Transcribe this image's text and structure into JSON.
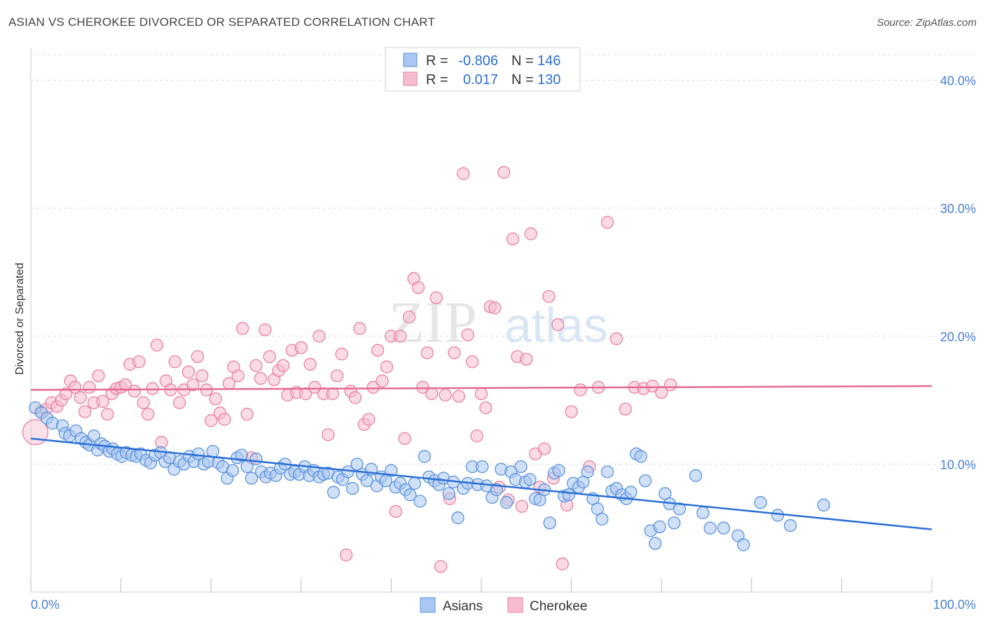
{
  "title": "ASIAN VS CHEROKEE DIVORCED OR SEPARATED CORRELATION CHART",
  "source": "Source: ZipAtlas.com",
  "watermark": {
    "zip": "ZIP",
    "atlas": "atlas"
  },
  "colors": {
    "asians_fill": "#a9c7f0",
    "asians_stroke": "#5b93da",
    "asians_line": "#2a6fd6",
    "cherokee_fill": "#f6bdd0",
    "cherokee_stroke": "#e8809f",
    "cherokee_line": "#e46a92",
    "grid": "#dddddd",
    "tick_text": "#4a7fd0"
  },
  "legend": {
    "rows": [
      {
        "r_label": "R =",
        "r_value": "-0.806",
        "n_label": "N =",
        "n_value": "146"
      },
      {
        "r_label": "R =",
        "r_value": "0.017",
        "n_label": "N =",
        "n_value": "130"
      }
    ]
  },
  "bottom_legend": [
    "Asians",
    "Cherokee"
  ],
  "chart_data": {
    "type": "scatter",
    "title": "ASIAN VS CHEROKEE DIVORCED OR SEPARATED CORRELATION CHART",
    "xlabel": "",
    "ylabel": "Divorced or Separated",
    "xlim": [
      0,
      100
    ],
    "ylim": [
      0,
      42
    ],
    "x_tick_labels": [
      "0.0%",
      "100.0%"
    ],
    "y_ticks": [
      10,
      20,
      30,
      40
    ],
    "y_tick_labels": [
      "10.0%",
      "20.0%",
      "30.0%",
      "40.0%"
    ],
    "grid": true,
    "legend_position": "top-center",
    "series": [
      {
        "name": "Asians",
        "r": -0.806,
        "n": 146,
        "trend": {
          "x": [
            0,
            100
          ],
          "y": [
            12.0,
            4.9
          ]
        },
        "points": [
          [
            0.5,
            14.4
          ],
          [
            1.2,
            14.0
          ],
          [
            1.8,
            13.6
          ],
          [
            2.4,
            13.2
          ],
          [
            3.5,
            13.0
          ],
          [
            3.8,
            12.4
          ],
          [
            4.3,
            12.2
          ],
          [
            5.0,
            12.6
          ],
          [
            5.6,
            12.0
          ],
          [
            6.1,
            11.7
          ],
          [
            6.5,
            11.5
          ],
          [
            7.0,
            12.2
          ],
          [
            7.4,
            11.1
          ],
          [
            7.8,
            11.6
          ],
          [
            8.2,
            11.4
          ],
          [
            8.7,
            11.0
          ],
          [
            9.1,
            11.2
          ],
          [
            9.6,
            10.8
          ],
          [
            10.1,
            10.6
          ],
          [
            10.6,
            10.9
          ],
          [
            11.2,
            10.7
          ],
          [
            11.7,
            10.6
          ],
          [
            12.2,
            10.8
          ],
          [
            12.8,
            10.3
          ],
          [
            13.3,
            10.1
          ],
          [
            13.8,
            10.7
          ],
          [
            14.4,
            10.9
          ],
          [
            14.9,
            10.2
          ],
          [
            15.4,
            10.5
          ],
          [
            15.9,
            9.6
          ],
          [
            16.5,
            10.2
          ],
          [
            17.0,
            10.0
          ],
          [
            17.6,
            10.6
          ],
          [
            18.1,
            10.2
          ],
          [
            18.6,
            10.8
          ],
          [
            19.2,
            10.0
          ],
          [
            19.7,
            10.2
          ],
          [
            20.2,
            11.0
          ],
          [
            20.8,
            10.1
          ],
          [
            21.3,
            9.8
          ],
          [
            21.8,
            8.9
          ],
          [
            22.4,
            9.5
          ],
          [
            22.9,
            10.5
          ],
          [
            23.4,
            10.7
          ],
          [
            24.0,
            9.8
          ],
          [
            24.5,
            8.9
          ],
          [
            25.0,
            10.4
          ],
          [
            25.6,
            9.4
          ],
          [
            26.1,
            9.0
          ],
          [
            26.6,
            9.3
          ],
          [
            27.2,
            9.1
          ],
          [
            27.7,
            9.7
          ],
          [
            28.2,
            10.0
          ],
          [
            28.8,
            9.2
          ],
          [
            29.3,
            9.4
          ],
          [
            29.8,
            9.2
          ],
          [
            30.4,
            9.8
          ],
          [
            30.9,
            9.1
          ],
          [
            31.4,
            9.5
          ],
          [
            32.0,
            9.0
          ],
          [
            32.5,
            9.2
          ],
          [
            33.0,
            9.3
          ],
          [
            33.6,
            7.8
          ],
          [
            34.1,
            9.0
          ],
          [
            34.6,
            8.8
          ],
          [
            35.2,
            9.4
          ],
          [
            35.7,
            8.1
          ],
          [
            36.2,
            10.0
          ],
          [
            36.8,
            9.2
          ],
          [
            37.3,
            8.7
          ],
          [
            37.8,
            9.6
          ],
          [
            38.4,
            8.3
          ],
          [
            38.9,
            9.0
          ],
          [
            39.4,
            8.7
          ],
          [
            40.0,
            9.5
          ],
          [
            40.5,
            8.2
          ],
          [
            41.0,
            8.5
          ],
          [
            41.6,
            8.0
          ],
          [
            42.1,
            7.6
          ],
          [
            42.6,
            8.5
          ],
          [
            43.2,
            7.1
          ],
          [
            43.7,
            10.6
          ],
          [
            44.2,
            9.0
          ],
          [
            44.8,
            8.7
          ],
          [
            45.3,
            8.4
          ],
          [
            45.8,
            8.9
          ],
          [
            46.4,
            7.7
          ],
          [
            46.9,
            8.6
          ],
          [
            47.4,
            5.8
          ],
          [
            48.0,
            8.1
          ],
          [
            48.5,
            8.5
          ],
          [
            49.0,
            9.8
          ],
          [
            49.6,
            8.4
          ],
          [
            50.1,
            9.8
          ],
          [
            50.6,
            8.3
          ],
          [
            51.2,
            7.4
          ],
          [
            51.7,
            8.0
          ],
          [
            52.2,
            9.6
          ],
          [
            52.8,
            7.0
          ],
          [
            53.3,
            9.4
          ],
          [
            53.8,
            8.8
          ],
          [
            54.4,
            9.8
          ],
          [
            54.9,
            8.6
          ],
          [
            55.4,
            8.8
          ],
          [
            56.0,
            7.3
          ],
          [
            56.5,
            7.2
          ],
          [
            57.0,
            8.0
          ],
          [
            57.6,
            5.4
          ],
          [
            58.1,
            9.3
          ],
          [
            58.6,
            9.5
          ],
          [
            59.2,
            7.5
          ],
          [
            59.7,
            7.6
          ],
          [
            60.2,
            8.5
          ],
          [
            60.8,
            8.2
          ],
          [
            61.3,
            8.6
          ],
          [
            61.8,
            9.4
          ],
          [
            62.4,
            7.3
          ],
          [
            62.9,
            6.5
          ],
          [
            63.4,
            5.7
          ],
          [
            64.0,
            9.4
          ],
          [
            64.5,
            7.9
          ],
          [
            65.0,
            8.1
          ],
          [
            65.6,
            7.6
          ],
          [
            66.1,
            7.3
          ],
          [
            66.6,
            7.8
          ],
          [
            67.2,
            10.8
          ],
          [
            67.7,
            10.6
          ],
          [
            68.2,
            8.7
          ],
          [
            68.8,
            4.8
          ],
          [
            69.3,
            3.8
          ],
          [
            69.8,
            5.1
          ],
          [
            70.4,
            7.7
          ],
          [
            70.9,
            6.9
          ],
          [
            71.4,
            5.4
          ],
          [
            72.0,
            6.5
          ],
          [
            73.8,
            9.1
          ],
          [
            74.6,
            6.2
          ],
          [
            75.4,
            5.0
          ],
          [
            76.9,
            5.0
          ],
          [
            78.5,
            4.4
          ],
          [
            79.1,
            3.7
          ],
          [
            81.0,
            7.0
          ],
          [
            82.9,
            6.0
          ],
          [
            84.3,
            5.2
          ],
          [
            88.0,
            6.8
          ]
        ]
      },
      {
        "name": "Cherokee",
        "r": 0.017,
        "n": 130,
        "trend": {
          "x": [
            0,
            100
          ],
          "y": [
            15.8,
            16.1
          ]
        },
        "points": [
          [
            0.5,
            12.5
          ],
          [
            1.1,
            14.1
          ],
          [
            1.7,
            14.3
          ],
          [
            2.3,
            14.8
          ],
          [
            2.9,
            14.5
          ],
          [
            3.4,
            15.0
          ],
          [
            3.9,
            15.5
          ],
          [
            4.4,
            16.5
          ],
          [
            4.9,
            16.0
          ],
          [
            5.5,
            15.2
          ],
          [
            6.0,
            14.1
          ],
          [
            6.5,
            16.0
          ],
          [
            7.0,
            14.8
          ],
          [
            7.5,
            16.9
          ],
          [
            8.0,
            14.9
          ],
          [
            8.5,
            13.9
          ],
          [
            9.0,
            15.5
          ],
          [
            9.5,
            15.9
          ],
          [
            10.0,
            16.0
          ],
          [
            10.5,
            16.2
          ],
          [
            11.0,
            17.8
          ],
          [
            11.5,
            15.7
          ],
          [
            12.0,
            18.0
          ],
          [
            12.5,
            14.8
          ],
          [
            13.0,
            13.9
          ],
          [
            13.5,
            15.9
          ],
          [
            14.0,
            19.3
          ],
          [
            14.5,
            11.7
          ],
          [
            15.0,
            16.5
          ],
          [
            15.5,
            15.8
          ],
          [
            16.0,
            18.0
          ],
          [
            16.5,
            14.8
          ],
          [
            17.0,
            15.8
          ],
          [
            17.5,
            17.2
          ],
          [
            18.0,
            16.2
          ],
          [
            18.5,
            18.4
          ],
          [
            19.0,
            16.9
          ],
          [
            19.5,
            15.8
          ],
          [
            20.0,
            13.4
          ],
          [
            20.5,
            15.1
          ],
          [
            21.0,
            14.0
          ],
          [
            21.5,
            13.5
          ],
          [
            22.0,
            16.3
          ],
          [
            22.5,
            17.6
          ],
          [
            23.0,
            16.9
          ],
          [
            23.5,
            20.6
          ],
          [
            24.0,
            13.9
          ],
          [
            24.5,
            10.5
          ],
          [
            25.0,
            17.7
          ],
          [
            25.5,
            16.7
          ],
          [
            26.0,
            20.5
          ],
          [
            26.5,
            18.4
          ],
          [
            27.0,
            16.6
          ],
          [
            27.5,
            17.3
          ],
          [
            28.0,
            17.7
          ],
          [
            28.5,
            15.4
          ],
          [
            29.0,
            18.9
          ],
          [
            29.5,
            15.6
          ],
          [
            30.0,
            19.1
          ],
          [
            30.5,
            15.5
          ],
          [
            31.0,
            17.8
          ],
          [
            31.5,
            16.0
          ],
          [
            32.0,
            20.0
          ],
          [
            32.5,
            15.5
          ],
          [
            33.0,
            12.3
          ],
          [
            33.5,
            15.5
          ],
          [
            34.0,
            16.9
          ],
          [
            34.5,
            18.6
          ],
          [
            35.0,
            2.9
          ],
          [
            35.5,
            15.7
          ],
          [
            36.0,
            15.2
          ],
          [
            36.5,
            20.6
          ],
          [
            37.0,
            13.1
          ],
          [
            37.5,
            13.5
          ],
          [
            38.0,
            16.0
          ],
          [
            38.5,
            18.9
          ],
          [
            39.0,
            16.5
          ],
          [
            39.5,
            17.6
          ],
          [
            40.0,
            20.0
          ],
          [
            40.5,
            6.3
          ],
          [
            41.0,
            20.0
          ],
          [
            41.5,
            12.0
          ],
          [
            42.0,
            21.5
          ],
          [
            42.5,
            24.5
          ],
          [
            43.0,
            23.8
          ],
          [
            43.5,
            16.0
          ],
          [
            44.0,
            18.7
          ],
          [
            44.5,
            15.5
          ],
          [
            45.0,
            23.0
          ],
          [
            45.5,
            2.0
          ],
          [
            46.0,
            15.4
          ],
          [
            46.5,
            7.3
          ],
          [
            47.0,
            18.7
          ],
          [
            47.5,
            15.3
          ],
          [
            48.0,
            32.7
          ],
          [
            48.5,
            20.1
          ],
          [
            49.0,
            18.0
          ],
          [
            49.5,
            12.2
          ],
          [
            50.0,
            15.5
          ],
          [
            50.5,
            14.4
          ],
          [
            51.0,
            22.3
          ],
          [
            51.5,
            22.2
          ],
          [
            52.0,
            8.2
          ],
          [
            52.5,
            32.8
          ],
          [
            53.0,
            7.2
          ],
          [
            53.5,
            27.6
          ],
          [
            54.0,
            18.4
          ],
          [
            54.5,
            6.7
          ],
          [
            55.0,
            18.2
          ],
          [
            55.5,
            28.0
          ],
          [
            56.0,
            10.8
          ],
          [
            56.5,
            8.2
          ],
          [
            57.0,
            11.2
          ],
          [
            57.5,
            23.1
          ],
          [
            58.0,
            8.9
          ],
          [
            58.5,
            20.9
          ],
          [
            59.0,
            2.2
          ],
          [
            59.5,
            6.8
          ],
          [
            60.0,
            14.1
          ],
          [
            61.0,
            15.8
          ],
          [
            62.0,
            9.8
          ],
          [
            63.0,
            16.0
          ],
          [
            64.0,
            28.9
          ],
          [
            65.0,
            19.8
          ],
          [
            66.0,
            14.3
          ],
          [
            67.0,
            16.0
          ],
          [
            68.0,
            15.9
          ],
          [
            69.0,
            16.1
          ],
          [
            70.0,
            15.6
          ],
          [
            71.0,
            16.2
          ]
        ]
      }
    ]
  }
}
